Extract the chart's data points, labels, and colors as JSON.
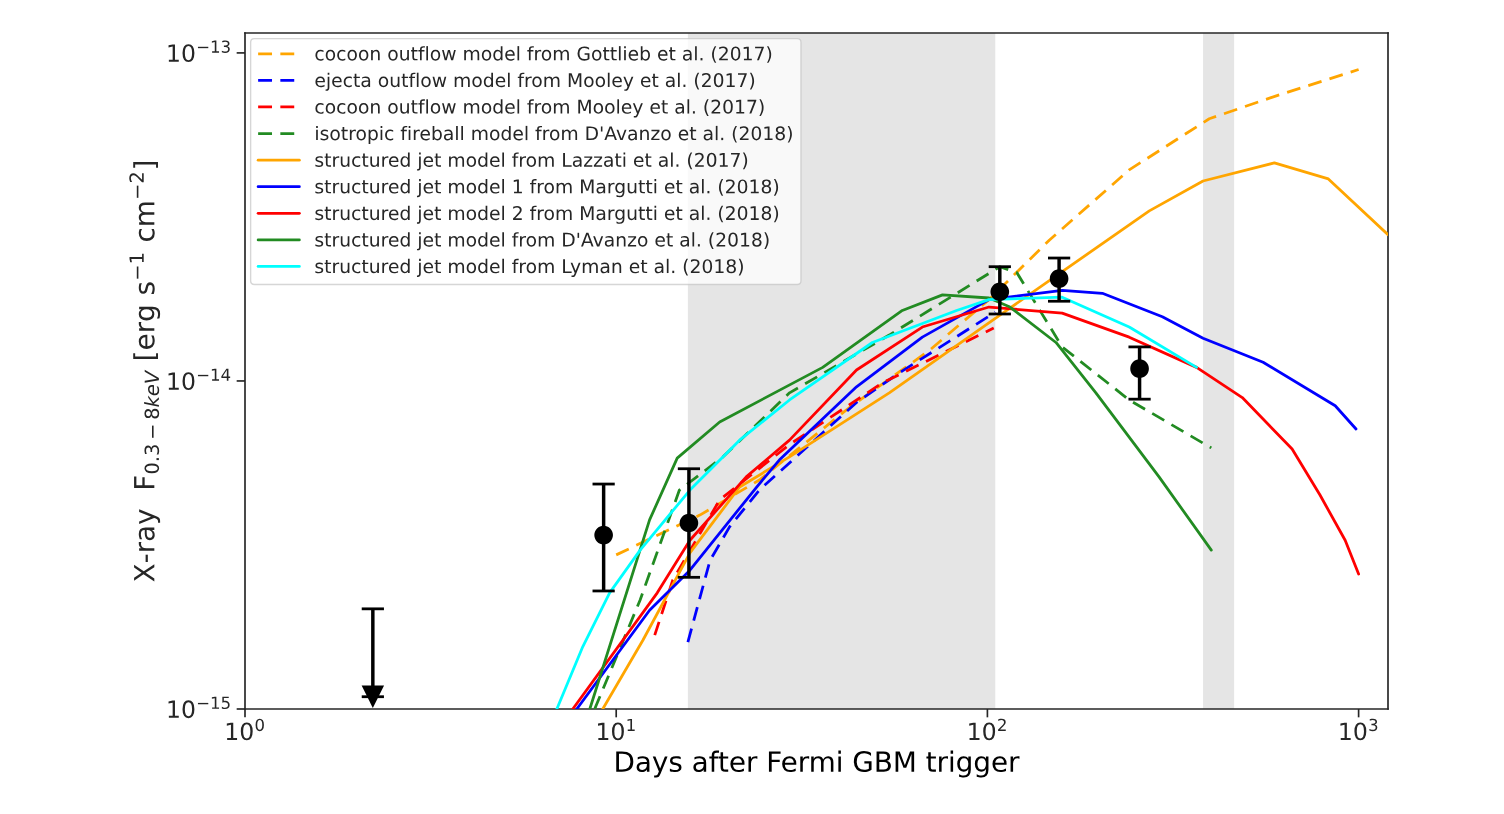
{
  "chart_data": {
    "type": "line",
    "xlabel": "Days after Fermi GBM trigger",
    "ylabel": "X-ray  F$_{0.3−8keV}$ [erg s$^{−1}$ cm$^{−2}$]",
    "log": "xy",
    "grid": false,
    "legend": "top left",
    "xlim": [
      1,
      1200
    ],
    "ylim": [
      1e-15,
      1.15e-13
    ],
    "xticks": [
      {
        "value": 1,
        "label": "10$^{0}$"
      },
      {
        "value": 10,
        "label": "10$^{1}$"
      },
      {
        "value": 100,
        "label": "10$^{2}$"
      },
      {
        "value": 1000,
        "label": "10$^{3}$"
      }
    ],
    "yticks": [
      {
        "value": 1e-15,
        "label": "10$^{−15}$"
      },
      {
        "value": 1e-14,
        "label": "10$^{−14}$"
      },
      {
        "value": 1e-13,
        "label": "10$^{−13}$"
      }
    ],
    "bands": [
      {
        "axis": "x",
        "from": 15.6,
        "to": 105,
        "color": "#e5e5e5"
      },
      {
        "axis": "x",
        "from": 381,
        "to": 462,
        "color": "#e5e5e5"
      }
    ],
    "series": [
      {
        "name": "cocoon outflow model from Gottlieb et al. (2017)",
        "color": "#ffa500",
        "line_style": "dashed",
        "x": [
          10,
          16.8,
          24.3,
          42.5,
          69.8,
          101,
          147,
          241,
          396,
          611,
          1000
        ],
        "values": [
          2.95e-15,
          3.9e-15,
          4.99e-15,
          8.3e-15,
          1.24e-14,
          1.77e-14,
          2.69e-14,
          4.4e-14,
          6.3e-14,
          7.45e-14,
          8.9e-14
        ]
      },
      {
        "name": "ejecta outflow model from Mooley et al. (2017)",
        "color": "#0000ff",
        "line_style": "dashed",
        "x": [
          15.6,
          17.9,
          20.2,
          24.3,
          44.4,
          58,
          105
        ],
        "values": [
          1.6e-15,
          2.84e-15,
          3.59e-15,
          4.65e-15,
          8.6e-15,
          1.06e-14,
          1.62e-14
        ]
      },
      {
        "name": "cocoon outflow model from Mooley et al. (2017)",
        "color": "#ff0000",
        "line_style": "dashed",
        "x": [
          12.7,
          14.2,
          19,
          29.3,
          52.1,
          104
        ],
        "values": [
          1.68e-15,
          2.47e-15,
          4.34e-15,
          6.4e-15,
          9.86e-15,
          1.45e-14
        ]
      },
      {
        "name": "isotropic fireball model from D'Avanzo et al. (2018)",
        "color": "#228b22",
        "line_style": "dashed",
        "x": [
          8.75,
          11.6,
          14.8,
          19.4,
          29.3,
          54.4,
          108,
          120,
          159,
          241,
          401
        ],
        "values": [
          1e-15,
          2.15e-15,
          4.65e-15,
          5.87e-15,
          9.2e-15,
          1.38e-14,
          2.23e-14,
          2.14e-14,
          1.27e-14,
          8.75e-15,
          6.25e-15
        ]
      },
      {
        "name": "structured jet model from Lazzati et al. (2017)",
        "color": "#ffa500",
        "line_style": "solid",
        "x": [
          9.2,
          11.8,
          15.8,
          21.5,
          29.3,
          54.4,
          110,
          273,
          381,
          593,
          829,
          1200
        ],
        "values": [
          1e-15,
          1.62e-15,
          2.99e-15,
          4.75e-15,
          5.87e-15,
          9.2e-15,
          1.61e-14,
          3.3e-14,
          4.07e-14,
          4.62e-14,
          4.13e-14,
          2.79e-14
        ]
      },
      {
        "name": "structured jet model 1 from Margutti et al. (2018)",
        "color": "#0000ff",
        "line_style": "solid",
        "x": [
          7.83,
          12.3,
          15.8,
          23.9,
          27.5,
          44.4,
          66.8,
          101,
          159,
          204,
          296,
          381,
          553,
          865,
          984
        ],
        "values": [
          1e-15,
          2e-15,
          2.65e-15,
          4.75e-15,
          5.74e-15,
          9.6e-15,
          1.36e-14,
          1.77e-14,
          1.89e-14,
          1.85e-14,
          1.57e-14,
          1.35e-14,
          1.14e-14,
          8.4e-15,
          7.14e-15
        ]
      },
      {
        "name": "structured jet model 2 from Margutti et al. (2018)",
        "color": "#ff0000",
        "line_style": "solid",
        "x": [
          7.64,
          12.9,
          15.8,
          22.4,
          29.3,
          44.4,
          66.8,
          101,
          159,
          241,
          366,
          486,
          662,
          787,
          920,
          1000
        ],
        "values": [
          1e-15,
          2.26e-15,
          3.27e-15,
          5.1e-15,
          6.6e-15,
          1.08e-14,
          1.46e-14,
          1.68e-14,
          1.61e-14,
          1.36e-14,
          1.1e-14,
          8.9e-15,
          6.2e-15,
          4.49e-15,
          3.27e-15,
          2.58e-15
        ]
      },
      {
        "name": "structured jet model from D'Avanzo et al. (2018)",
        "color": "#228b22",
        "line_style": "solid",
        "x": [
          8.49,
          12.3,
          14.6,
          19,
          36,
          59,
          75.7,
          101,
          115,
          153,
          196,
          290,
          401
        ],
        "values": [
          1e-15,
          3.77e-15,
          5.82e-15,
          7.5e-15,
          1.1e-14,
          1.64e-14,
          1.83e-14,
          1.79e-14,
          1.68e-14,
          1.31e-14,
          9.2e-15,
          5.1e-15,
          3.05e-15
        ]
      },
      {
        "name": "structured jet model from Lyman et al. (2018)",
        "color": "#00ffff",
        "line_style": "solid",
        "x": [
          6.92,
          8.13,
          9.6,
          11.6,
          15.8,
          21.5,
          29.3,
          49,
          82.6,
          101,
          159,
          241,
          366
        ],
        "values": [
          1e-15,
          1.55e-15,
          2.26e-15,
          3.05e-15,
          4.65e-15,
          6.6e-15,
          8.75e-15,
          1.31e-14,
          1.64e-14,
          1.77e-14,
          1.8e-14,
          1.46e-14,
          1.1e-14
        ]
      },
      {
        "type": "scatter",
        "color": "#000000",
        "marker": "circle",
        "x": [
          9.25,
          15.7,
          108,
          156,
          257
        ],
        "values": [
          3.39e-15,
          3.69e-15,
          1.87e-14,
          2.05e-14,
          1.09e-14
        ],
        "errors": [
          [
            2.29e-15,
            4.85e-15
          ],
          [
            2.52e-15,
            5.4e-15
          ],
          [
            1.6e-14,
            2.23e-14
          ],
          [
            1.75e-14,
            2.37e-14
          ],
          [
            8.8e-15,
            1.27e-14
          ]
        ]
      },
      {
        "type": "scatter",
        "color": "#000000",
        "marker": "triangle",
        "x": [
          2.21
        ],
        "values": [
          1.09e-15
        ],
        "errors": [
          [
            1.09e-15,
            2.02e-15
          ]
        ]
      }
    ]
  }
}
